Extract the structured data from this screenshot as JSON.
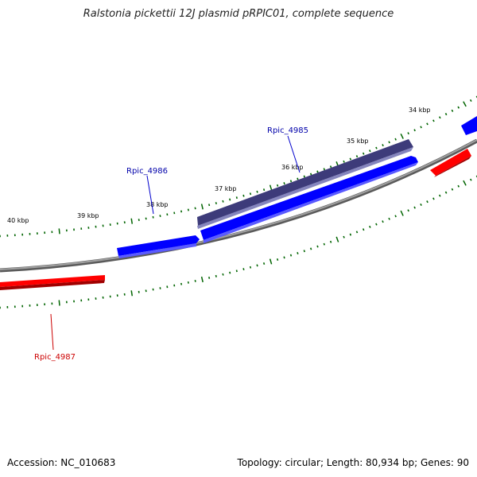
{
  "title": "Ralstonia pickettii 12J plasmid pRPIC01, complete sequence",
  "footer": {
    "accession": "Accession: NC_010683",
    "summary": "Topology: circular; Length: 80,934 bp; Genes: 90"
  },
  "scale_labels": [
    "34 kbp",
    "35 kbp",
    "36 kbp",
    "37 kbp",
    "38 kbp",
    "39 kbp",
    "40 kbp"
  ],
  "genes": [
    {
      "name": "Rpic_4985",
      "color": "#0000aa"
    },
    {
      "name": "Rpic_4986",
      "color": "#0000aa"
    },
    {
      "name": "Rpic_4987",
      "color": "#cc0000"
    }
  ],
  "colors": {
    "backbone": "#808080",
    "tick": "#006400",
    "forward": "#0000ff",
    "reverse": "#ff0000",
    "highlight": "#3d3b7a"
  }
}
